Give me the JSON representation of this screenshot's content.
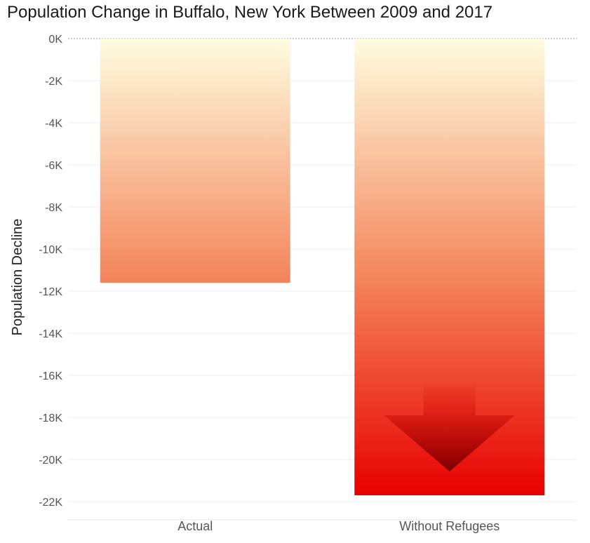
{
  "title": "Population Change in Buffalo, New York Between 2009 and 2017",
  "chart_data": {
    "type": "bar",
    "title": "Population Change in Buffalo, New York Between 2009 and 2017",
    "ylabel": "Population Decline",
    "xlabel": "",
    "categories": [
      "Actual",
      "Without Refugees"
    ],
    "values": [
      -11600,
      -21700
    ],
    "ylim": [
      -22000,
      0
    ],
    "yticks": [
      0,
      -2000,
      -4000,
      -6000,
      -8000,
      -10000,
      -12000,
      -14000,
      -16000,
      -18000,
      -20000,
      -22000
    ],
    "ytick_labels": [
      "0K",
      "-2K",
      "-4K",
      "-6K",
      "-8K",
      "-10K",
      "-12K",
      "-14K",
      "-16K",
      "-18K",
      "-20K",
      "-22K"
    ],
    "grid": true,
    "annotations": [
      {
        "category": "Without Refugees",
        "type": "arrow",
        "direction": "down"
      }
    ],
    "colors": {
      "gradient_top": "#fffde0",
      "gradient_mid": "#f4845a",
      "gradient_bottom": "#e80000",
      "arrow_dark": "#7a0000"
    }
  }
}
